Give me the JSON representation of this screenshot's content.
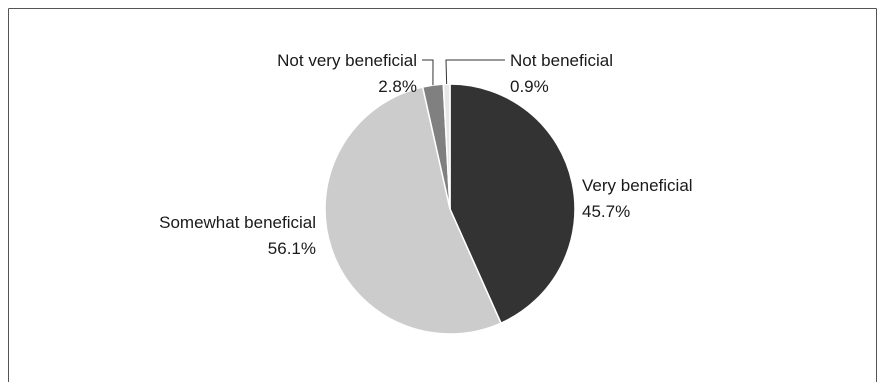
{
  "chart_data": {
    "type": "pie",
    "title": "",
    "slices": [
      {
        "label": "Very beneficial",
        "value": 45.7,
        "value_label": "45.7%",
        "color": "#333333"
      },
      {
        "label": "Somewhat beneficial",
        "value": 56.1,
        "value_label": "56.1%",
        "color": "#cccccc"
      },
      {
        "label": "Not very beneficial",
        "value": 2.8,
        "value_label": "2.8%",
        "color": "#808080"
      },
      {
        "label": "Not beneficial",
        "value": 0.9,
        "value_label": "0.9%",
        "color": "#e6e6e6"
      }
    ],
    "start": "12 o'clock",
    "direction": "clockwise",
    "legend": "none",
    "label_style": "outside labels with leader lines"
  }
}
